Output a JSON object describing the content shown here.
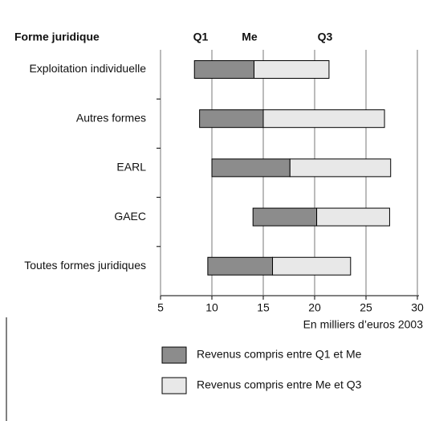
{
  "chart_data": {
    "type": "floating_bar",
    "category_header": "Forme juridique",
    "column_labels": [
      "Q1",
      "Me",
      "Q3"
    ],
    "categories": [
      "Exploitation individuelle",
      "Autres formes",
      "EARL",
      "GAEC",
      "Toutes formes juridiques"
    ],
    "q1": [
      8.3,
      8.8,
      10,
      14,
      9.6
    ],
    "median": [
      14.1,
      15,
      17.6,
      20.2,
      15.9
    ],
    "q3": [
      21.4,
      26.8,
      27.4,
      27.3,
      23.5
    ],
    "series": [
      {
        "name": "Revenus compris entre Q1 et Me",
        "color": "#8c8c8c"
      },
      {
        "name": "Revenus compris entre Me et Q3",
        "color": "#e8e8e8"
      }
    ],
    "x_label": "En milliers d’euros 2003",
    "xlim": [
      5,
      30
    ],
    "xticks": [
      5,
      10,
      15,
      20,
      25,
      30
    ],
    "grid": true
  }
}
